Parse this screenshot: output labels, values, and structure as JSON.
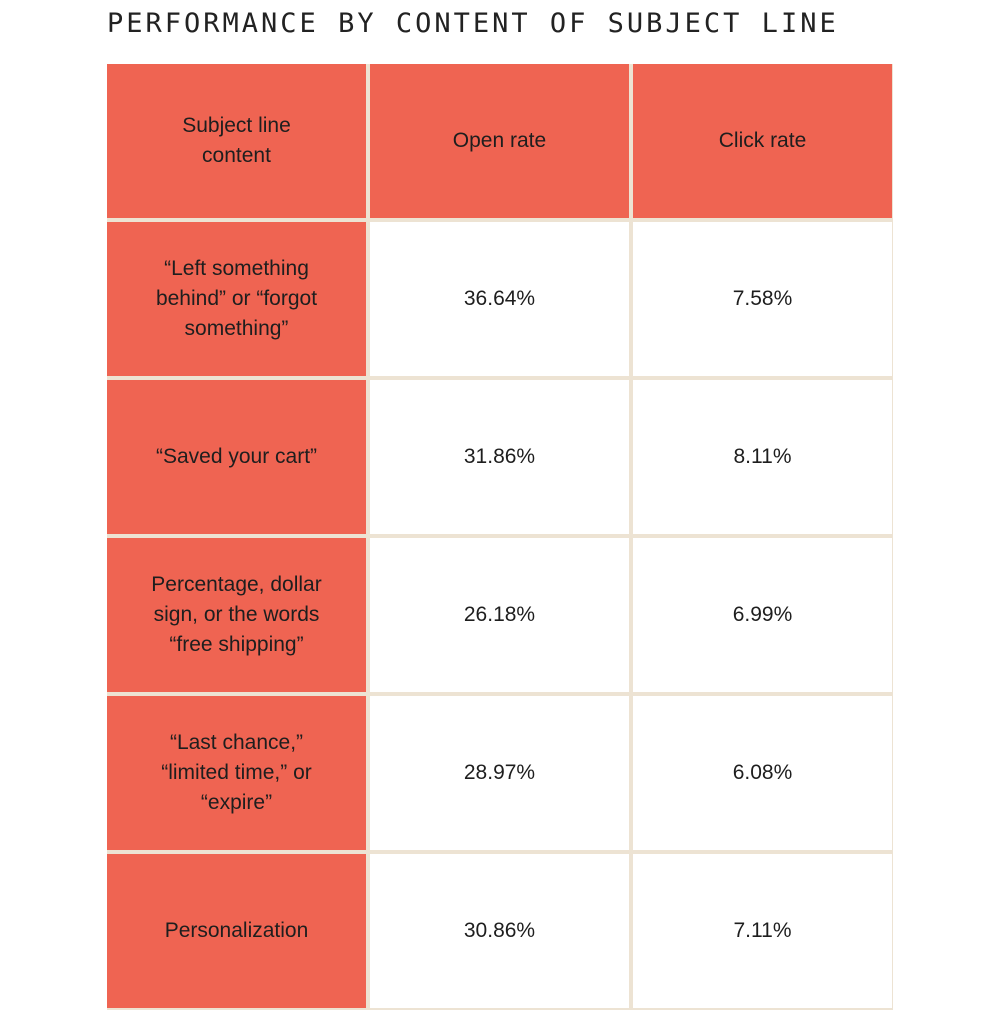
{
  "title": "PERFORMANCE BY CONTENT OF SUBJECT LINE",
  "chart_data": {
    "type": "table",
    "title": "PERFORMANCE BY CONTENT OF SUBJECT LINE",
    "columns": [
      "Subject line content",
      "Open rate",
      "Click rate"
    ],
    "rows": [
      {
        "content": "“Left something behind” or “forgot something”",
        "open_rate": "36.64%",
        "click_rate": "7.58%"
      },
      {
        "content": "“Saved your cart”",
        "open_rate": "31.86%",
        "click_rate": "8.11%"
      },
      {
        "content": "Percentage, dollar sign, or the words “free shipping”",
        "open_rate": "26.18%",
        "click_rate": "6.99%"
      },
      {
        "content": "“Last chance,” “limited time,” or “expire”",
        "open_rate": "28.97%",
        "click_rate": "6.08%"
      },
      {
        "content": "Personalization",
        "open_rate": "30.86%",
        "click_rate": "7.11%"
      }
    ],
    "colors": {
      "header_fill": "#ef6452",
      "label_fill": "#ef6452",
      "value_fill": "#ffffff",
      "grid_line": "#ede3d3"
    }
  }
}
